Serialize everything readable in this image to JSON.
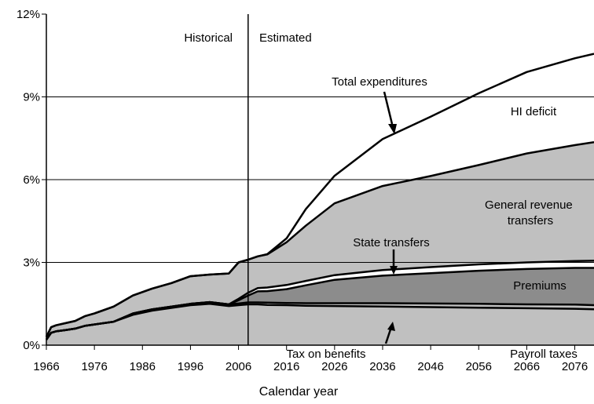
{
  "chart_data": {
    "type": "area",
    "xlabel": "Calendar year",
    "ylabel": "",
    "xlim": [
      1966,
      2080
    ],
    "ylim": [
      0,
      12
    ],
    "x_ticks": [
      "1966",
      "1976",
      "1986",
      "1996",
      "2006",
      "2016",
      "2026",
      "2036",
      "2046",
      "2056",
      "2066",
      "2076"
    ],
    "y_ticks": [
      "0%",
      "3%",
      "6%",
      "9%",
      "12%"
    ],
    "grid": "horizontal",
    "divider_year": 2008,
    "period_labels": {
      "historical": "Historical",
      "estimated": "Estimated"
    },
    "x": [
      1966,
      1967,
      1968,
      1970,
      1972,
      1974,
      1976,
      1980,
      1984,
      1988,
      1992,
      1996,
      2000,
      2004,
      2006,
      2008,
      2010,
      2012,
      2016,
      2020,
      2026,
      2036,
      2046,
      2056,
      2066,
      2076,
      2080
    ],
    "series": [
      {
        "name": "Payroll taxes",
        "values": [
          0.2,
          0.45,
          0.5,
          0.55,
          0.6,
          0.7,
          0.75,
          0.85,
          1.1,
          1.25,
          1.35,
          1.45,
          1.5,
          1.42,
          1.45,
          1.48,
          1.48,
          1.46,
          1.45,
          1.43,
          1.42,
          1.4,
          1.38,
          1.36,
          1.34,
          1.32,
          1.3
        ]
      },
      {
        "name": "Tax on benefits",
        "values": [
          0,
          0,
          0,
          0,
          0,
          0,
          0,
          0,
          0.05,
          0.05,
          0.05,
          0.05,
          0.06,
          0.06,
          0.06,
          0.07,
          0.07,
          0.08,
          0.08,
          0.09,
          0.1,
          0.12,
          0.13,
          0.14,
          0.14,
          0.15,
          0.15
        ]
      },
      {
        "name": "Premiums",
        "values": [
          0,
          0,
          0,
          0,
          0,
          0,
          0,
          0,
          0,
          0,
          0,
          0,
          0,
          0,
          0.12,
          0.25,
          0.4,
          0.42,
          0.5,
          0.65,
          0.85,
          1.0,
          1.1,
          1.2,
          1.28,
          1.33,
          1.35
        ]
      },
      {
        "name": "State transfers",
        "values": [
          0,
          0,
          0,
          0,
          0,
          0,
          0,
          0,
          0,
          0,
          0,
          0,
          0,
          0,
          0.05,
          0.1,
          0.12,
          0.13,
          0.15,
          0.16,
          0.17,
          0.2,
          0.22,
          0.23,
          0.24,
          0.25,
          0.26
        ]
      },
      {
        "name": "General revenue transfers",
        "values": [
          0.1,
          0.2,
          0.22,
          0.25,
          0.28,
          0.35,
          0.4,
          0.55,
          0.65,
          0.75,
          0.85,
          1.0,
          1.0,
          1.12,
          1.32,
          1.2,
          1.15,
          1.2,
          1.55,
          2.0,
          2.6,
          3.05,
          3.3,
          3.6,
          3.95,
          4.2,
          4.3
        ]
      },
      {
        "name": "HI deficit",
        "values": [
          0,
          0,
          0,
          0,
          0,
          0,
          0,
          0,
          0,
          0,
          0,
          0,
          0,
          0,
          0,
          0,
          0,
          0.01,
          0.14,
          0.6,
          1.0,
          1.7,
          2.15,
          2.6,
          2.95,
          3.15,
          3.2
        ]
      }
    ],
    "total_expenditures_label": "Total expenditures",
    "colors": {
      "payroll": "#c0c0c0",
      "tax_on_benefits": "#c0c0c0",
      "premiums": "#8c8c8c",
      "state_transfers": "#ffffff",
      "general_revenue": "#c0c0c0",
      "hi_deficit": "#ffffff",
      "line": "#000000"
    }
  }
}
